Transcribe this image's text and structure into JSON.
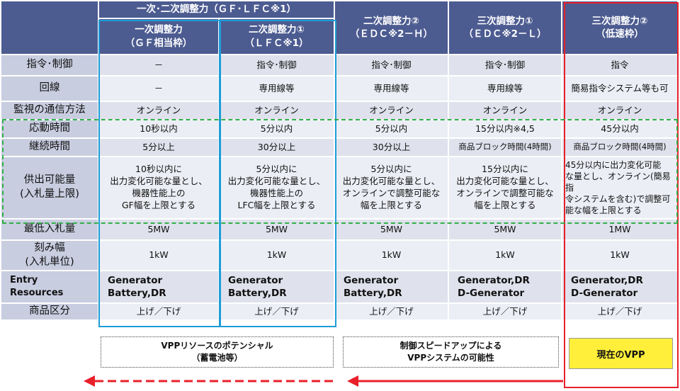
{
  "header": {
    "group_title": "一次･二次調整力（ＧＦ･ＬＦＣ※1）",
    "columns": [
      {
        "line1": "一次調整力",
        "line2": "（ＧＦ相当枠）"
      },
      {
        "line1": "二次調整力①",
        "line2": "（ＬＦＣ※1）"
      },
      {
        "line1": "二次調整力②",
        "line2": "（ＥＤＣ※2－Ｈ）"
      },
      {
        "line1": "三次調整力①",
        "line2": "（ＥＤＣ※2－Ｌ）"
      },
      {
        "line1": "三次調整力②",
        "line2": "（低速枠）"
      }
    ]
  },
  "rows": [
    {
      "label": "指令･制御",
      "cells": [
        "－",
        "指令･制御",
        "指令･制御",
        "指令･制御",
        "指令"
      ]
    },
    {
      "label": "回線",
      "cells": [
        "－",
        "専用線等",
        "専用線等",
        "専用線等",
        "簡易指令システム等も可"
      ]
    },
    {
      "label": "監視の通信方法",
      "cells": [
        "オンライン",
        "オンライン",
        "オンライン",
        "オンライン",
        "オンライン"
      ]
    },
    {
      "label": "応動時間",
      "cells": [
        "10秒以内",
        "5分以内",
        "5分以内",
        "15分以内※4,5",
        "45分以内"
      ]
    },
    {
      "label": "継続時間",
      "cells": [
        "5分以上",
        "30分以上",
        "30分以上",
        "商品ブロック時間(4時間)",
        "商品ブロック時間(4時間)"
      ]
    },
    {
      "label": "供出可能量\n(入札量上限)",
      "cells": [
        "10秒以内に\n出力変化可能な量とし、\n機器性能上の\nGF幅を上限とする",
        "5分以内に\n出力変化可能な量とし、\n機器性能上の\nLFC幅を上限とする",
        "5分以内に\n出力変化可能な量とし、\nオンラインで調整可能な\n幅を上限とする",
        "15分以内に\n出力変化可能な量とし、\nオンラインで調整可能な\n幅を上限とする",
        "45分以内に出力変化可能\nな量とし、オンライン(簡易指\n令システムを含む)で調整可\n能な幅を上限とする"
      ]
    },
    {
      "label": "最低入札量",
      "cells": [
        "5MW",
        "5MW",
        "5MW",
        "5MW",
        "1MW"
      ]
    },
    {
      "label": "刻み幅\n(入札単位)",
      "cells": [
        "1kW",
        "1kW",
        "1kW",
        "1kW",
        "1kW"
      ]
    },
    {
      "label": "Entry\nResources",
      "cells": [
        "Generator\nBattery,DR",
        "Generator\nBattery,DR",
        "Generator\nBattery,DR",
        "Generator,DR\nD-Generator",
        "Generator,DR\nD-Generator"
      ]
    },
    {
      "label": "商品区分",
      "cells": [
        "上げ／下げ",
        "上げ／下げ",
        "上げ／下げ",
        "上げ／下げ",
        "上げ／下げ"
      ]
    }
  ],
  "notes": {
    "potential": "VPPリソースのポテンシャル\n（蓄電池等）",
    "speedup": "制御スピードアップによる\nVPPシステムの可能性",
    "current": "現在のVPP"
  },
  "colors": {
    "header": "#4c5b90",
    "blue_frame": "#1e9cd7",
    "red_frame": "#e8202a",
    "green_dash": "#32b04a",
    "yellow": "#ffef3a"
  }
}
